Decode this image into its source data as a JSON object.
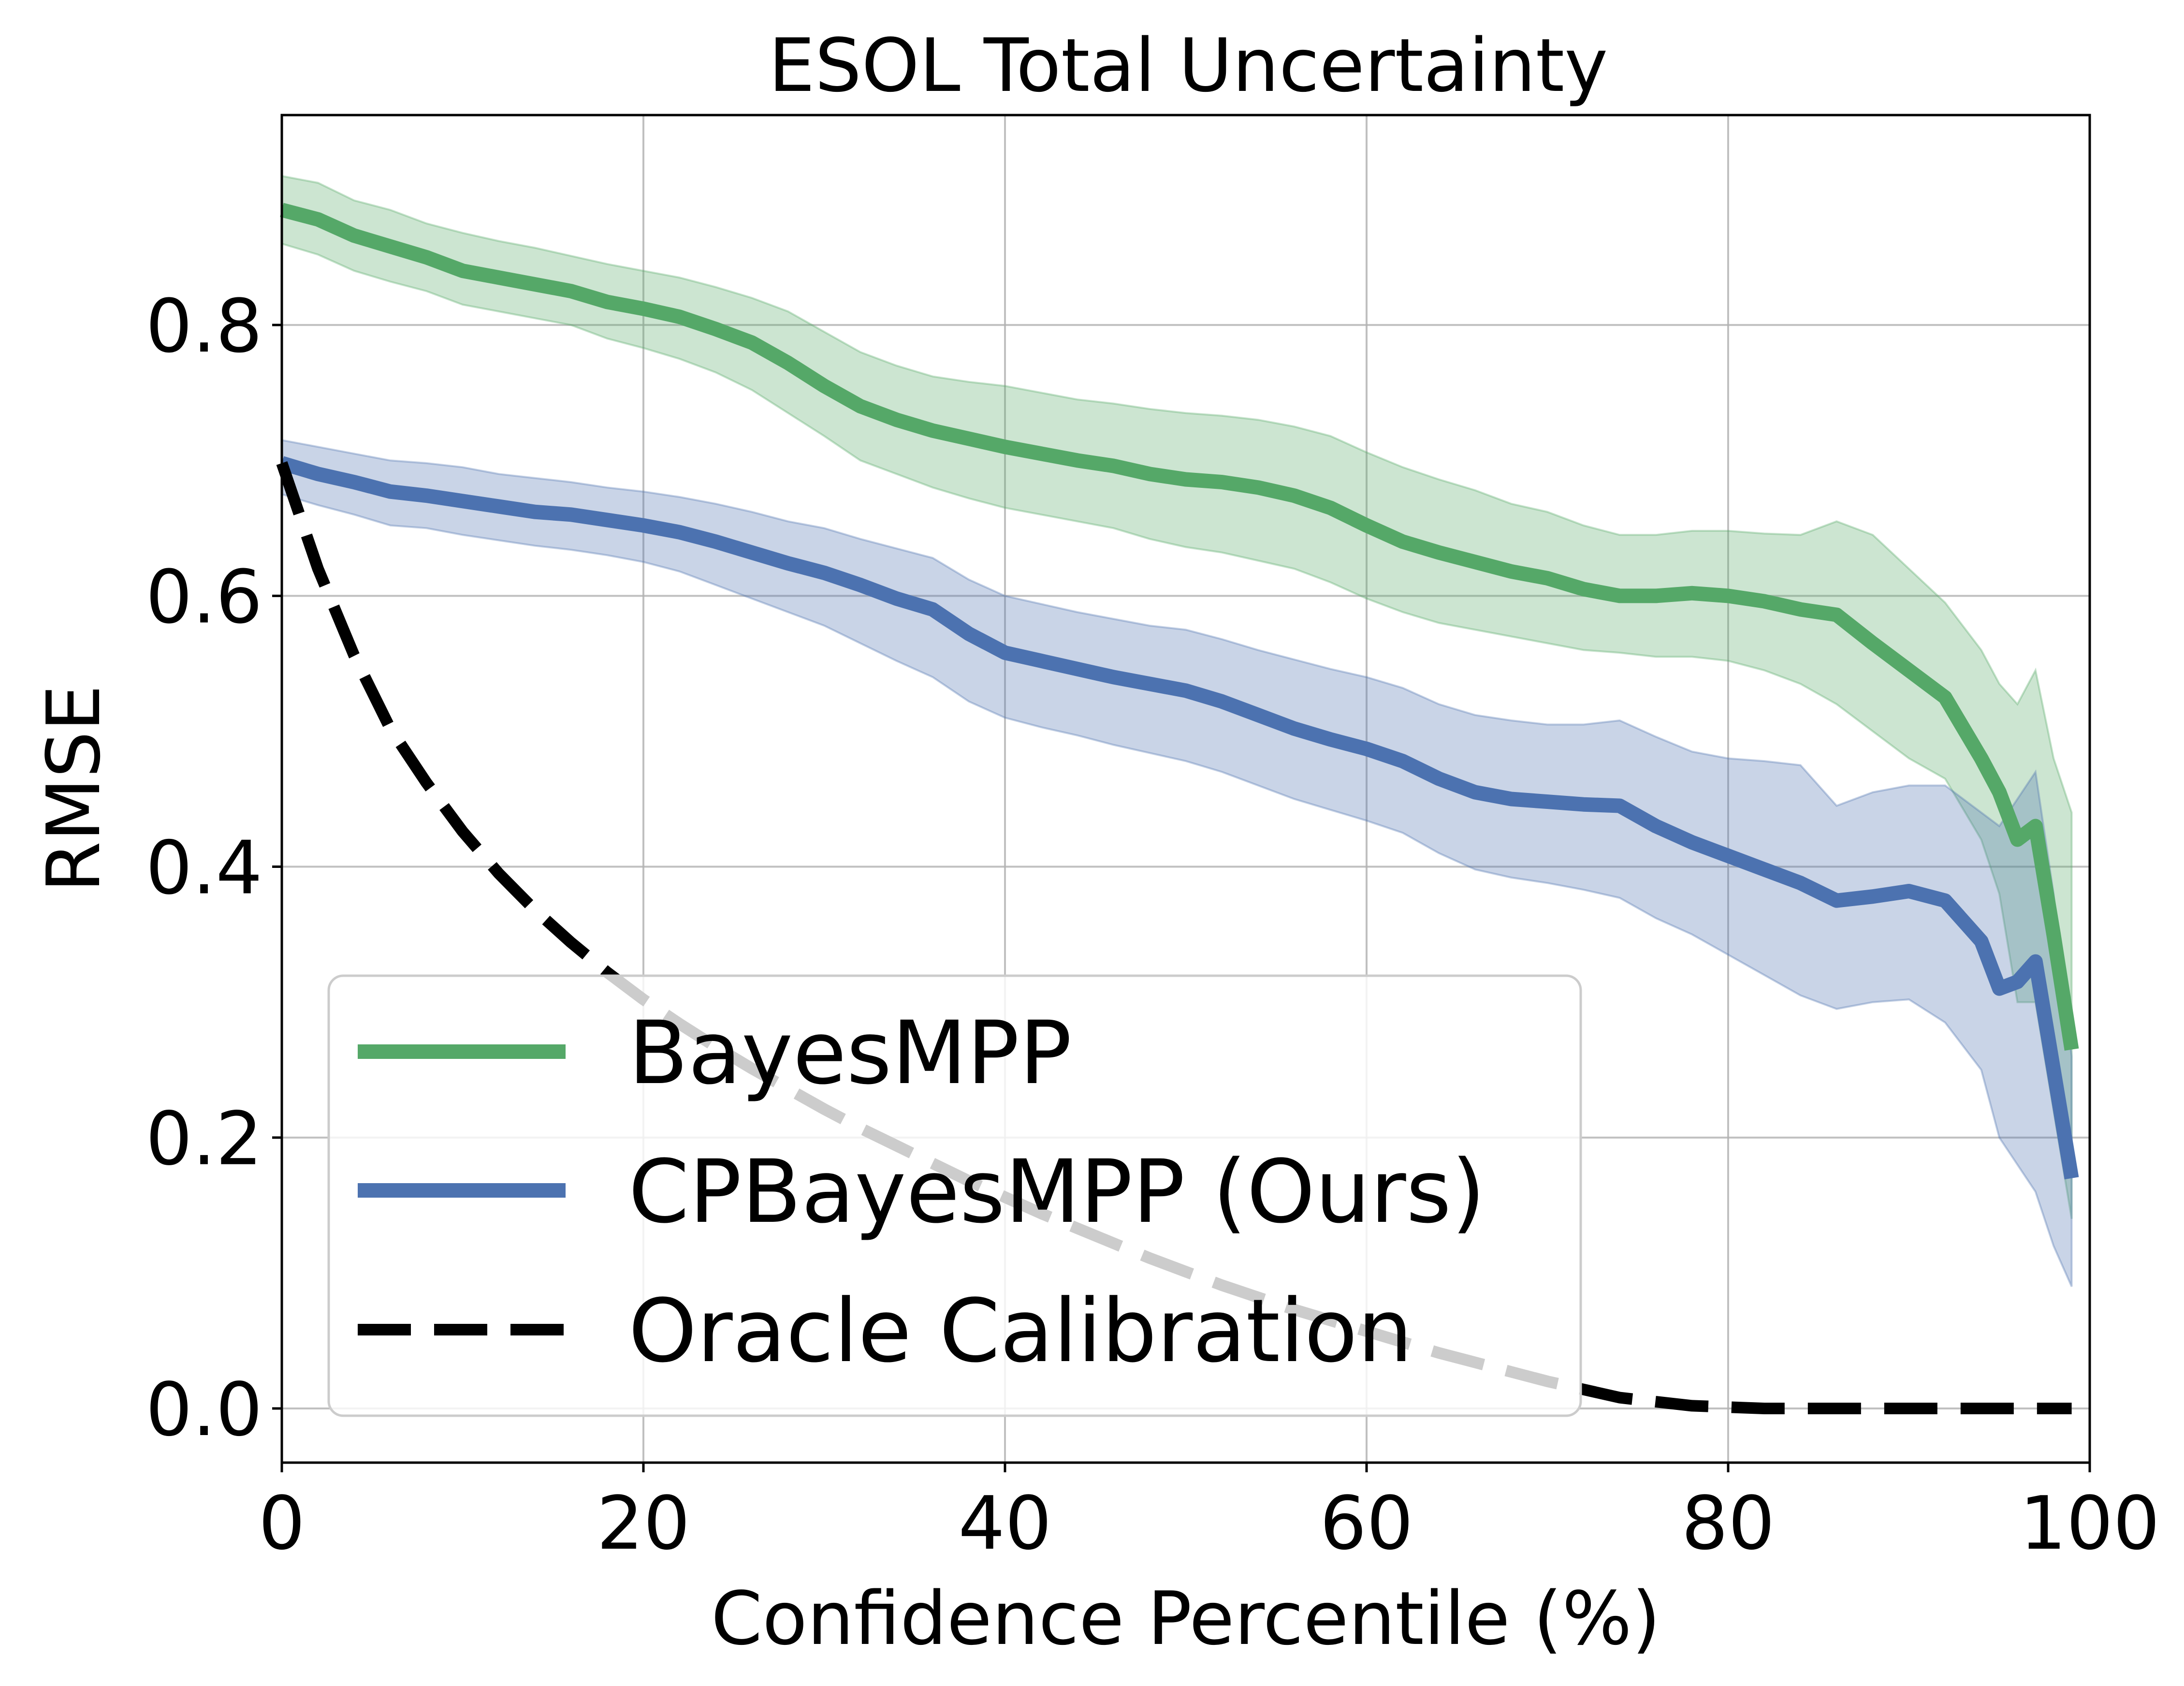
{
  "chart_data": {
    "type": "line",
    "title": "ESOL Total Uncertainty",
    "xlabel": "Confidence Percentile (%)",
    "ylabel": "RMSE",
    "xlim": [
      0,
      100
    ],
    "ylim": [
      -0.04,
      0.955
    ],
    "xticks": [
      0,
      20,
      40,
      60,
      80,
      100
    ],
    "xtick_labels": [
      "0",
      "20",
      "40",
      "60",
      "80",
      "100"
    ],
    "yticks": [
      0.0,
      0.2,
      0.4,
      0.6,
      0.8
    ],
    "ytick_labels": [
      "0.0",
      "0.2",
      "0.4",
      "0.6",
      "0.8"
    ],
    "grid": true,
    "legend_position": "lower-left",
    "x": [
      0,
      2,
      4,
      6,
      8,
      10,
      12,
      14,
      16,
      18,
      20,
      22,
      24,
      26,
      28,
      30,
      32,
      34,
      36,
      38,
      40,
      42,
      44,
      46,
      48,
      50,
      52,
      54,
      56,
      58,
      60,
      62,
      64,
      66,
      68,
      70,
      72,
      74,
      76,
      78,
      80,
      82,
      84,
      86,
      88,
      90,
      92,
      94,
      95,
      96,
      97,
      98,
      99
    ],
    "series": [
      {
        "name": "BayesMPP",
        "color": "#55a868",
        "style": "solid",
        "values": [
          0.885,
          0.878,
          0.866,
          0.858,
          0.85,
          0.84,
          0.835,
          0.83,
          0.825,
          0.817,
          0.812,
          0.806,
          0.797,
          0.787,
          0.772,
          0.755,
          0.74,
          0.73,
          0.722,
          0.716,
          0.71,
          0.705,
          0.7,
          0.696,
          0.69,
          0.686,
          0.684,
          0.68,
          0.674,
          0.665,
          0.652,
          0.64,
          0.632,
          0.625,
          0.618,
          0.613,
          0.605,
          0.6,
          0.6,
          0.602,
          0.6,
          0.596,
          0.59,
          0.586,
          0.565,
          0.545,
          0.525,
          0.48,
          0.455,
          0.42,
          0.43,
          0.35,
          0.265
        ],
        "lower": [
          0.86,
          0.852,
          0.84,
          0.832,
          0.825,
          0.815,
          0.81,
          0.805,
          0.8,
          0.79,
          0.783,
          0.775,
          0.765,
          0.752,
          0.735,
          0.718,
          0.7,
          0.69,
          0.68,
          0.672,
          0.665,
          0.66,
          0.655,
          0.65,
          0.642,
          0.636,
          0.632,
          0.626,
          0.62,
          0.61,
          0.598,
          0.588,
          0.58,
          0.575,
          0.57,
          0.565,
          0.56,
          0.558,
          0.555,
          0.555,
          0.552,
          0.545,
          0.535,
          0.52,
          0.5,
          0.48,
          0.465,
          0.42,
          0.38,
          0.3,
          0.3,
          0.22,
          0.14
        ],
        "upper": [
          0.91,
          0.905,
          0.892,
          0.885,
          0.875,
          0.868,
          0.862,
          0.857,
          0.851,
          0.845,
          0.84,
          0.835,
          0.828,
          0.82,
          0.81,
          0.795,
          0.78,
          0.77,
          0.762,
          0.758,
          0.755,
          0.75,
          0.745,
          0.742,
          0.738,
          0.735,
          0.733,
          0.73,
          0.725,
          0.718,
          0.706,
          0.695,
          0.686,
          0.678,
          0.668,
          0.662,
          0.652,
          0.645,
          0.645,
          0.648,
          0.648,
          0.646,
          0.645,
          0.655,
          0.645,
          0.62,
          0.595,
          0.56,
          0.535,
          0.52,
          0.545,
          0.48,
          0.44
        ]
      },
      {
        "name": "CPBayesMPP (Ours)",
        "color": "#4c72b0",
        "style": "solid",
        "values": [
          0.698,
          0.69,
          0.684,
          0.677,
          0.674,
          0.67,
          0.666,
          0.662,
          0.66,
          0.656,
          0.652,
          0.647,
          0.64,
          0.632,
          0.624,
          0.617,
          0.608,
          0.598,
          0.59,
          0.572,
          0.558,
          0.552,
          0.546,
          0.54,
          0.535,
          0.53,
          0.522,
          0.512,
          0.502,
          0.494,
          0.487,
          0.478,
          0.465,
          0.455,
          0.45,
          0.448,
          0.446,
          0.445,
          0.43,
          0.418,
          0.408,
          0.398,
          0.388,
          0.375,
          0.378,
          0.382,
          0.375,
          0.345,
          0.31,
          0.315,
          0.33,
          0.25,
          0.17
        ],
        "lower": [
          0.675,
          0.667,
          0.66,
          0.652,
          0.65,
          0.645,
          0.641,
          0.637,
          0.634,
          0.63,
          0.625,
          0.618,
          0.608,
          0.598,
          0.588,
          0.578,
          0.565,
          0.552,
          0.54,
          0.522,
          0.51,
          0.503,
          0.497,
          0.49,
          0.484,
          0.478,
          0.47,
          0.46,
          0.45,
          0.442,
          0.434,
          0.425,
          0.41,
          0.398,
          0.392,
          0.388,
          0.383,
          0.377,
          0.362,
          0.35,
          0.335,
          0.32,
          0.305,
          0.295,
          0.3,
          0.302,
          0.285,
          0.25,
          0.2,
          0.18,
          0.16,
          0.12,
          0.09
        ],
        "upper": [
          0.715,
          0.71,
          0.705,
          0.7,
          0.698,
          0.695,
          0.69,
          0.687,
          0.684,
          0.68,
          0.677,
          0.673,
          0.668,
          0.662,
          0.655,
          0.65,
          0.642,
          0.635,
          0.628,
          0.612,
          0.6,
          0.594,
          0.588,
          0.583,
          0.578,
          0.575,
          0.568,
          0.56,
          0.553,
          0.546,
          0.54,
          0.532,
          0.52,
          0.512,
          0.508,
          0.505,
          0.505,
          0.508,
          0.496,
          0.485,
          0.48,
          0.478,
          0.475,
          0.445,
          0.455,
          0.46,
          0.46,
          0.44,
          0.43,
          0.45,
          0.47,
          0.38,
          0.26
        ]
      },
      {
        "name": "Oracle Calibration",
        "color": "#000000",
        "style": "dashed",
        "values": [
          0.698,
          0.62,
          0.556,
          0.502,
          0.462,
          0.426,
          0.395,
          0.368,
          0.344,
          0.322,
          0.302,
          0.284,
          0.267,
          0.251,
          0.236,
          0.221,
          0.207,
          0.194,
          0.181,
          0.168,
          0.156,
          0.144,
          0.133,
          0.122,
          0.111,
          0.101,
          0.091,
          0.082,
          0.073,
          0.065,
          0.057,
          0.049,
          0.041,
          0.034,
          0.027,
          0.02,
          0.014,
          0.008,
          0.005,
          0.002,
          0.001,
          0.0,
          0.0,
          0.0,
          0.0,
          0.0,
          0.0,
          0.0,
          0.0,
          0.0,
          0.0,
          0.0,
          0.0
        ]
      }
    ]
  }
}
